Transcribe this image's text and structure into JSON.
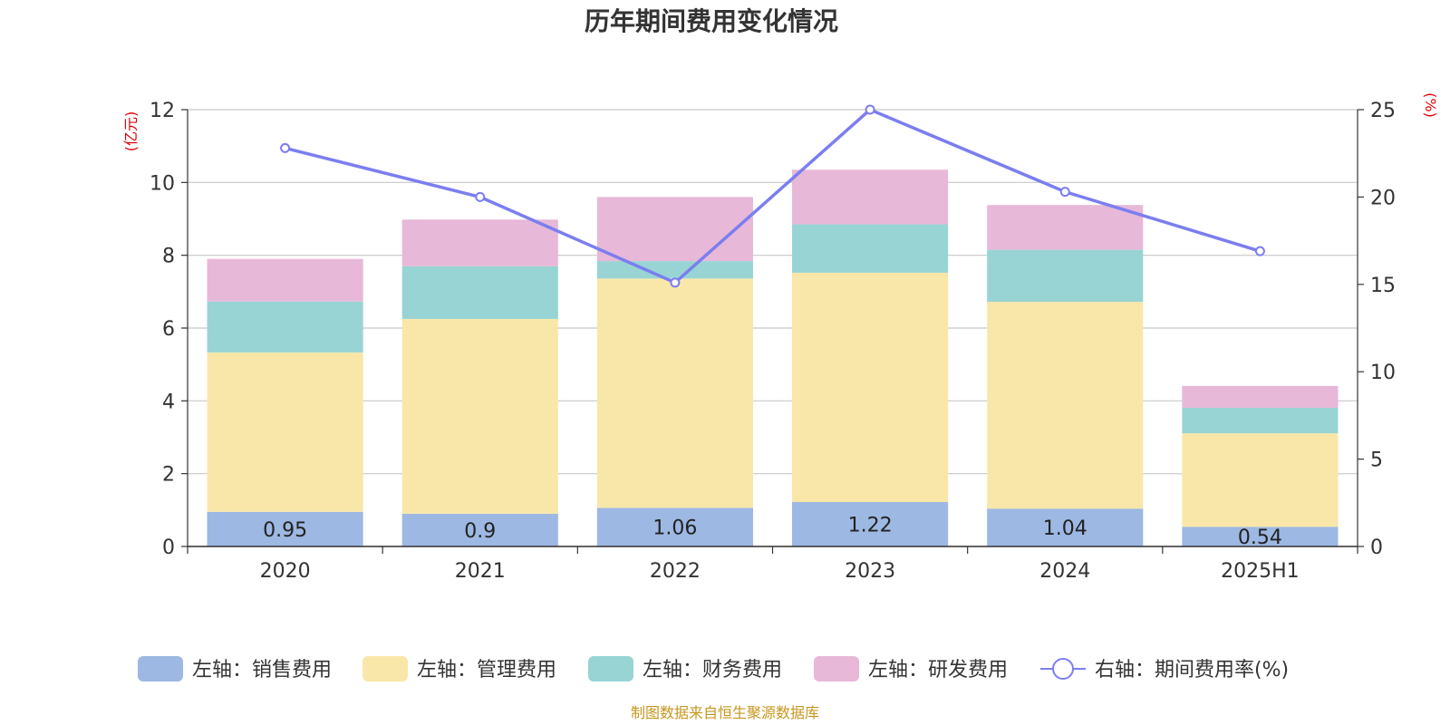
{
  "chart_data": {
    "type": "bar",
    "title": "历年期间费用变化情况",
    "categories": [
      "2020",
      "2021",
      "2022",
      "2023",
      "2024",
      "2025H1"
    ],
    "left_axis": {
      "unit": "(亿元)",
      "ylim": [
        0,
        12
      ],
      "ticks": [
        0,
        2,
        4,
        6,
        8,
        10,
        12
      ]
    },
    "right_axis": {
      "unit": "(%)",
      "ylim": [
        0,
        25
      ],
      "ticks": [
        0,
        5,
        10,
        15,
        20,
        25
      ]
    },
    "series": [
      {
        "name": "左轴：销售费用",
        "values": [
          0.95,
          0.9,
          1.06,
          1.22,
          1.04,
          0.54
        ],
        "color": "#9db8e2",
        "labels": [
          "0.95",
          "0.9",
          "1.06",
          "1.22",
          "1.04",
          "0.54"
        ]
      },
      {
        "name": "左轴：管理费用",
        "values": [
          4.38,
          5.35,
          6.3,
          6.3,
          5.68,
          2.57
        ],
        "color": "#f8e7a9"
      },
      {
        "name": "左轴：财务费用",
        "values": [
          1.4,
          1.45,
          0.48,
          1.33,
          1.43,
          0.7
        ],
        "color": "#98d4d4"
      },
      {
        "name": "左轴：研发费用",
        "values": [
          1.17,
          1.28,
          1.76,
          1.5,
          1.23,
          0.6
        ],
        "color": "#e7b8d8"
      }
    ],
    "line_series": {
      "name": "右轴：期间费用率(%)",
      "values": [
        22.8,
        20.0,
        15.1,
        25.0,
        20.3,
        16.9
      ],
      "color": "#7b7ef0"
    },
    "grid": true,
    "legend_position": "bottom"
  },
  "source_note": "制图数据来自恒生聚源数据库"
}
